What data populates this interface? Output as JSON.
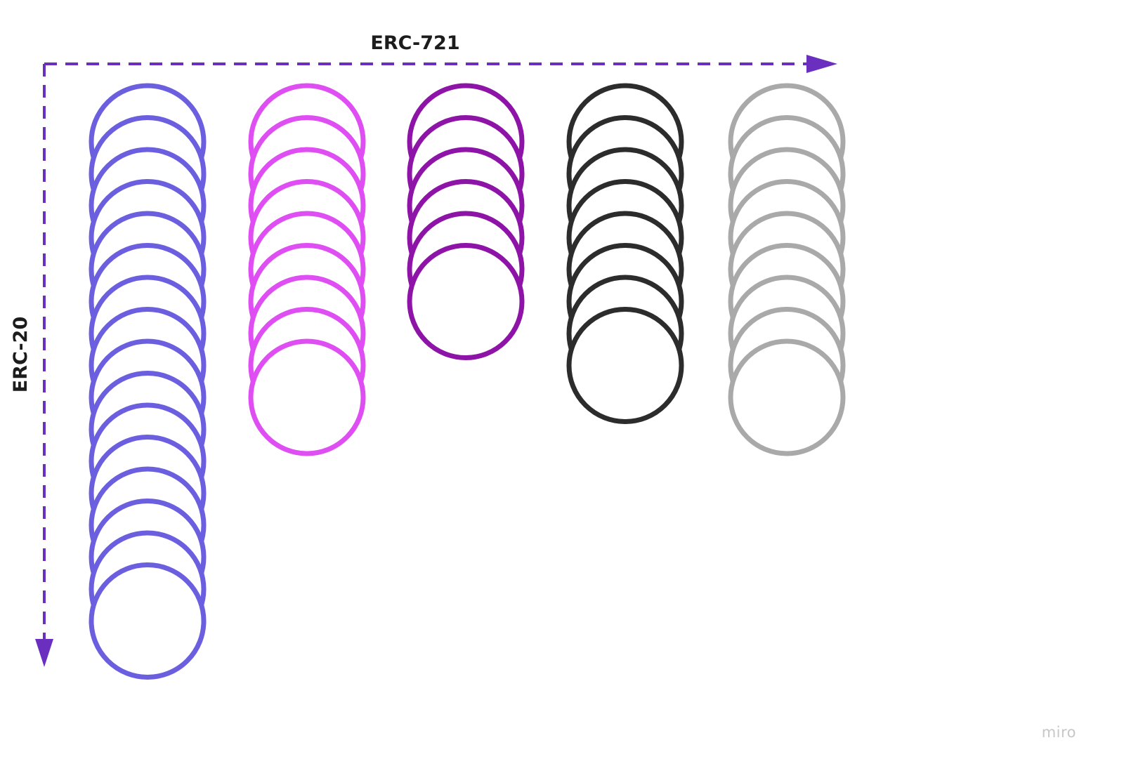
{
  "axes": {
    "horizontal": {
      "label": "ERC-721",
      "color": "#6a2fbf"
    },
    "vertical": {
      "label": "ERC-20",
      "color": "#6a2fbf"
    }
  },
  "columns": [
    {
      "id": "column-1",
      "color": "#6b5fe0",
      "count": 16
    },
    {
      "id": "column-2",
      "color": "#df4ef2",
      "count": 9
    },
    {
      "id": "column-3",
      "color": "#8e14a8",
      "count": 6
    },
    {
      "id": "column-4",
      "color": "#2c2c2c",
      "count": 8
    },
    {
      "id": "column-5",
      "color": "#a9a9a9",
      "count": 9
    }
  ],
  "watermark": "miro"
}
